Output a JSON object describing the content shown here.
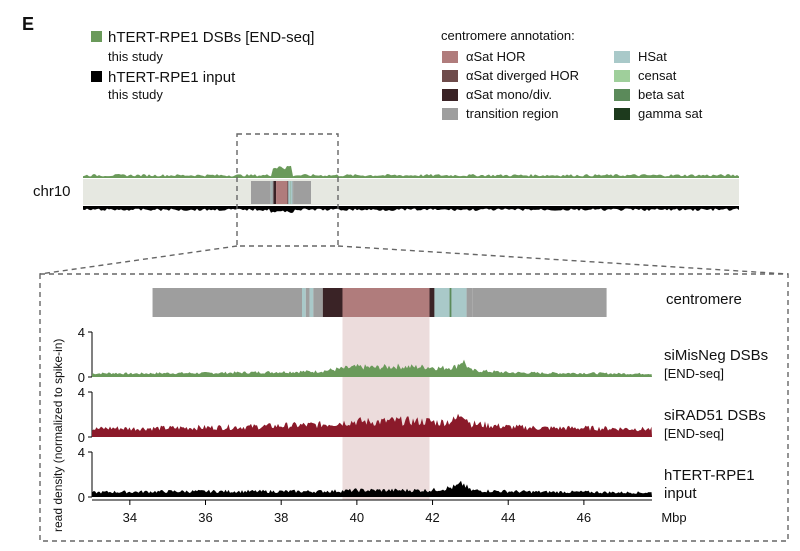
{
  "panel_label": "E",
  "legend_tracks": [
    {
      "label": "hTERT-RPE1 DSBs [END-seq]",
      "sub": "this study",
      "color": "#6a9a5a"
    },
    {
      "label": "hTERT-RPE1 input",
      "sub": "this study",
      "color": "#000000"
    }
  ],
  "annotation_title": "centromere annotation:",
  "annotation_items": [
    {
      "label": "αSat HOR",
      "color": "#b07c7c"
    },
    {
      "label": "αSat diverged HOR",
      "color": "#6e4b4b"
    },
    {
      "label": "αSat mono/div.",
      "color": "#3a2326"
    },
    {
      "label": "transition region",
      "color": "#9e9e9e"
    },
    {
      "label": "HSat",
      "color": "#a9c9c9"
    },
    {
      "label": "censat",
      "color": "#9fcf9b"
    },
    {
      "label": "beta sat",
      "color": "#5b8a5a"
    },
    {
      "label": "gamma sat",
      "color": "#1d3a1d"
    }
  ],
  "chromosome_label": "chr10",
  "chart_data": {
    "type": "area",
    "x_unit": "Mbp",
    "x_ticks": [
      34,
      36,
      38,
      40,
      42,
      44,
      46
    ],
    "xlim": [
      33.0,
      47.8
    ],
    "ylabel": "read density (normalized to spike-in)",
    "highlight_region": [
      39.62,
      41.92
    ],
    "centromere_label": "centromere",
    "centromere_segments": [
      {
        "start": 34.6,
        "end": 38.55,
        "class": "transition region"
      },
      {
        "start": 38.55,
        "end": 38.65,
        "class": "HSat"
      },
      {
        "start": 38.65,
        "end": 38.75,
        "class": "transition region"
      },
      {
        "start": 38.75,
        "end": 38.85,
        "class": "HSat"
      },
      {
        "start": 38.85,
        "end": 39.1,
        "class": "transition region"
      },
      {
        "start": 39.1,
        "end": 39.62,
        "class": "αSat mono/div."
      },
      {
        "start": 39.62,
        "end": 41.92,
        "class": "αSat HOR"
      },
      {
        "start": 41.92,
        "end": 42.05,
        "class": "αSat mono/div."
      },
      {
        "start": 42.05,
        "end": 42.45,
        "class": "HSat"
      },
      {
        "start": 42.45,
        "end": 42.5,
        "class": "beta sat"
      },
      {
        "start": 42.5,
        "end": 42.9,
        "class": "HSat"
      },
      {
        "start": 42.9,
        "end": 43.05,
        "class": "transition region"
      },
      {
        "start": 43.05,
        "end": 46.6,
        "class": "transition region"
      }
    ],
    "series": [
      {
        "name": "siMisNeg DSBs",
        "sub": "[END-seq]",
        "color": "#6a9a5a",
        "ylim": [
          0,
          4
        ],
        "y_ticks": [
          0,
          4
        ],
        "profile": [
          [
            33.0,
            0.3
          ],
          [
            33.5,
            0.35
          ],
          [
            34.0,
            0.3
          ],
          [
            35.0,
            0.35
          ],
          [
            36.0,
            0.35
          ],
          [
            37.0,
            0.4
          ],
          [
            38.0,
            0.45
          ],
          [
            39.0,
            0.5
          ],
          [
            39.62,
            0.75
          ],
          [
            40.0,
            0.9
          ],
          [
            40.5,
            0.85
          ],
          [
            41.0,
            0.95
          ],
          [
            41.5,
            0.9
          ],
          [
            41.92,
            0.9
          ],
          [
            42.2,
            0.8
          ],
          [
            42.6,
            0.9
          ],
          [
            42.8,
            1.5
          ],
          [
            43.0,
            0.6
          ],
          [
            44.0,
            0.4
          ],
          [
            45.0,
            0.35
          ],
          [
            46.0,
            0.35
          ],
          [
            47.0,
            0.3
          ],
          [
            47.8,
            0.3
          ]
        ]
      },
      {
        "name": "siRAD51 DSBs",
        "sub": "[END-seq]",
        "color": "#8b1a2a",
        "ylim": [
          0,
          4
        ],
        "y_ticks": [
          0,
          4
        ],
        "profile": [
          [
            33.0,
            0.7
          ],
          [
            33.5,
            0.8
          ],
          [
            34.0,
            0.75
          ],
          [
            35.0,
            0.8
          ],
          [
            36.0,
            0.85
          ],
          [
            37.0,
            0.9
          ],
          [
            38.0,
            1.0
          ],
          [
            39.0,
            1.1
          ],
          [
            39.62,
            1.3
          ],
          [
            40.0,
            1.4
          ],
          [
            40.5,
            1.35
          ],
          [
            41.0,
            1.45
          ],
          [
            41.5,
            1.4
          ],
          [
            41.92,
            1.4
          ],
          [
            42.2,
            1.3
          ],
          [
            42.6,
            1.5
          ],
          [
            42.8,
            2.3
          ],
          [
            43.0,
            1.2
          ],
          [
            44.0,
            0.9
          ],
          [
            45.0,
            0.8
          ],
          [
            46.0,
            0.8
          ],
          [
            47.0,
            0.75
          ],
          [
            47.8,
            0.7
          ]
        ]
      },
      {
        "name": "hTERT-RPE1",
        "sub": "input",
        "color": "#000000",
        "ylim": [
          0,
          4
        ],
        "y_ticks": [
          0,
          4
        ],
        "profile": [
          [
            33.0,
            0.4
          ],
          [
            33.5,
            0.45
          ],
          [
            34.0,
            0.45
          ],
          [
            35.0,
            0.5
          ],
          [
            36.0,
            0.5
          ],
          [
            37.0,
            0.5
          ],
          [
            38.0,
            0.5
          ],
          [
            39.0,
            0.5
          ],
          [
            39.62,
            0.55
          ],
          [
            40.0,
            0.6
          ],
          [
            40.5,
            0.6
          ],
          [
            41.0,
            0.6
          ],
          [
            41.5,
            0.6
          ],
          [
            41.92,
            0.6
          ],
          [
            42.2,
            0.7
          ],
          [
            42.6,
            0.9
          ],
          [
            42.8,
            1.2
          ],
          [
            43.0,
            0.6
          ],
          [
            44.0,
            0.5
          ],
          [
            45.0,
            0.45
          ],
          [
            46.0,
            0.45
          ],
          [
            47.0,
            0.4
          ],
          [
            47.8,
            0.4
          ]
        ]
      }
    ]
  }
}
